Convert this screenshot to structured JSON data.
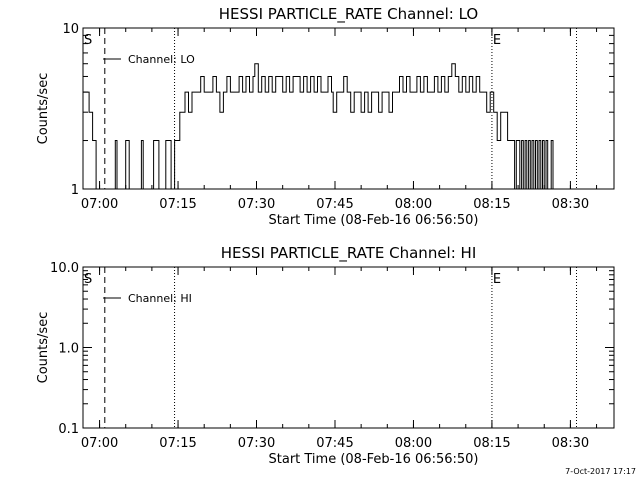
{
  "chart_data": [
    {
      "type": "line",
      "title": "HESSI PARTICLE_RATE Channel: LO",
      "xlabel": "Start Time (08-Feb-16 06:56:50)",
      "ylabel": "Counts/sec",
      "x_ticks": [
        "07:00",
        "07:15",
        "07:30",
        "07:45",
        "08:00",
        "08:15",
        "08:30"
      ],
      "y_ticks": [
        "1",
        "10"
      ],
      "yscale": "log",
      "ylim": [
        1,
        10
      ],
      "xlim": [
        "06:56:50",
        "08:38:20"
      ],
      "legend": {
        "label": "Channel: LO",
        "placement": "top-left"
      },
      "markers": [
        {
          "label": "S",
          "time": "06:56:50"
        },
        {
          "label": "E",
          "time": "08:15:00"
        }
      ],
      "vlines": [
        {
          "time": "07:01:00",
          "style": "dashed"
        },
        {
          "time": "07:14:20",
          "style": "dotted"
        },
        {
          "time": "08:15:00",
          "style": "dotted"
        },
        {
          "time": "08:31:10",
          "style": "dotted"
        }
      ],
      "series": [
        {
          "name": "Channel: LO",
          "points": [
            [
              "06:56:50",
              4
            ],
            [
              "06:57:30",
              4
            ],
            [
              "06:58:00",
              3
            ],
            [
              "06:58:40",
              2
            ],
            [
              "06:59:20",
              1
            ],
            [
              "07:00:40",
              1
            ],
            [
              "07:01:00",
              1
            ],
            [
              "07:02:20",
              1
            ],
            [
              "07:03:00",
              2
            ],
            [
              "07:03:20",
              1
            ],
            [
              "07:04:40",
              1
            ],
            [
              "07:05:00",
              2
            ],
            [
              "07:05:20",
              2
            ],
            [
              "07:05:40",
              1
            ],
            [
              "07:07:40",
              1
            ],
            [
              "07:08:00",
              2
            ],
            [
              "07:08:20",
              1
            ],
            [
              "07:10:00",
              1
            ],
            [
              "07:10:20",
              2
            ],
            [
              "07:11:00",
              2
            ],
            [
              "07:11:20",
              1
            ],
            [
              "07:12:20",
              1
            ],
            [
              "07:12:40",
              2
            ],
            [
              "07:13:20",
              2
            ],
            [
              "07:13:40",
              1
            ],
            [
              "07:14:20",
              2
            ],
            [
              "07:15:20",
              3
            ],
            [
              "07:16:20",
              4
            ],
            [
              "07:17:00",
              3
            ],
            [
              "07:17:40",
              4
            ],
            [
              "07:18:40",
              4
            ],
            [
              "07:19:20",
              5
            ],
            [
              "07:20:00",
              4
            ],
            [
              "07:21:00",
              4
            ],
            [
              "07:21:40",
              5
            ],
            [
              "07:22:20",
              4
            ],
            [
              "07:23:00",
              3
            ],
            [
              "07:23:40",
              4
            ],
            [
              "07:24:20",
              5
            ],
            [
              "07:25:00",
              4
            ],
            [
              "07:26:00",
              4
            ],
            [
              "07:26:40",
              5
            ],
            [
              "07:27:20",
              4
            ],
            [
              "07:28:00",
              5
            ],
            [
              "07:28:40",
              4
            ],
            [
              "07:29:20",
              5
            ],
            [
              "07:29:40",
              6
            ],
            [
              "07:30:20",
              4
            ],
            [
              "07:31:00",
              5
            ],
            [
              "07:31:40",
              4
            ],
            [
              "07:32:20",
              5
            ],
            [
              "07:33:00",
              4
            ],
            [
              "07:33:40",
              5
            ],
            [
              "07:34:20",
              5
            ],
            [
              "07:35:00",
              4
            ],
            [
              "07:35:40",
              5
            ],
            [
              "07:36:20",
              4
            ],
            [
              "07:37:00",
              5
            ],
            [
              "07:37:40",
              5
            ],
            [
              "07:38:20",
              4
            ],
            [
              "07:39:00",
              5
            ],
            [
              "07:39:40",
              4
            ],
            [
              "07:40:20",
              5
            ],
            [
              "07:41:00",
              4
            ],
            [
              "07:41:40",
              5
            ],
            [
              "07:42:20",
              4
            ],
            [
              "07:43:00",
              4
            ],
            [
              "07:43:40",
              5
            ],
            [
              "07:44:20",
              4
            ],
            [
              "07:44:40",
              3
            ],
            [
              "07:45:20",
              4
            ],
            [
              "07:46:00",
              4
            ],
            [
              "07:46:40",
              5
            ],
            [
              "07:47:20",
              4
            ],
            [
              "07:48:00",
              3
            ],
            [
              "07:48:40",
              4
            ],
            [
              "07:49:20",
              4
            ],
            [
              "07:50:00",
              3
            ],
            [
              "07:50:40",
              4
            ],
            [
              "07:51:20",
              3
            ],
            [
              "07:52:00",
              4
            ],
            [
              "07:52:40",
              4
            ],
            [
              "07:53:20",
              3
            ],
            [
              "07:54:00",
              4
            ],
            [
              "07:54:40",
              4
            ],
            [
              "07:55:20",
              3
            ],
            [
              "07:56:00",
              4
            ],
            [
              "07:56:40",
              4
            ],
            [
              "07:57:20",
              5
            ],
            [
              "07:58:00",
              4
            ],
            [
              "07:58:40",
              5
            ],
            [
              "07:59:20",
              4
            ],
            [
              "08:00:00",
              4
            ],
            [
              "08:00:40",
              5
            ],
            [
              "08:01:20",
              4
            ],
            [
              "08:02:00",
              5
            ],
            [
              "08:02:40",
              4
            ],
            [
              "08:03:20",
              4
            ],
            [
              "08:04:00",
              5
            ],
            [
              "08:04:40",
              4
            ],
            [
              "08:05:20",
              5
            ],
            [
              "08:06:00",
              4
            ],
            [
              "08:06:40",
              5
            ],
            [
              "08:07:20",
              6
            ],
            [
              "08:08:00",
              5
            ],
            [
              "08:08:40",
              4
            ],
            [
              "08:09:20",
              5
            ],
            [
              "08:10:00",
              4
            ],
            [
              "08:10:40",
              5
            ],
            [
              "08:11:20",
              4
            ],
            [
              "08:12:00",
              5
            ],
            [
              "08:12:40",
              4
            ],
            [
              "08:13:20",
              4
            ],
            [
              "08:14:00",
              3
            ],
            [
              "08:14:40",
              4
            ],
            [
              "08:15:20",
              3
            ],
            [
              "08:16:00",
              2
            ],
            [
              "08:16:40",
              3
            ],
            [
              "08:17:20",
              3
            ],
            [
              "08:18:00",
              2
            ],
            [
              "08:18:40",
              2
            ],
            [
              "08:19:20",
              1
            ],
            [
              "08:19:40",
              2
            ],
            [
              "08:20:20",
              1
            ],
            [
              "08:20:40",
              2
            ],
            [
              "08:21:00",
              1
            ],
            [
              "08:21:20",
              2
            ],
            [
              "08:21:40",
              1
            ],
            [
              "08:22:00",
              2
            ],
            [
              "08:22:20",
              1
            ],
            [
              "08:22:40",
              2
            ],
            [
              "08:23:00",
              1
            ],
            [
              "08:23:20",
              2
            ],
            [
              "08:23:40",
              1
            ],
            [
              "08:24:00",
              2
            ],
            [
              "08:24:20",
              1
            ],
            [
              "08:24:40",
              2
            ],
            [
              "08:25:00",
              1
            ],
            [
              "08:25:20",
              2
            ],
            [
              "08:25:40",
              1
            ],
            [
              "08:26:20",
              2
            ],
            [
              "08:26:40",
              1
            ]
          ]
        }
      ]
    },
    {
      "type": "line",
      "title": "HESSI PARTICLE_RATE Channel: HI",
      "xlabel": "Start Time (08-Feb-16 06:56:50)",
      "ylabel": "Counts/sec",
      "x_ticks": [
        "07:00",
        "07:15",
        "07:30",
        "07:45",
        "08:00",
        "08:15",
        "08:30"
      ],
      "y_ticks": [
        "0.1",
        "1.0",
        "10.0"
      ],
      "yscale": "log",
      "ylim": [
        0.1,
        10
      ],
      "xlim": [
        "06:56:50",
        "08:38:20"
      ],
      "legend": {
        "label": "Channel: HI",
        "placement": "top-left"
      },
      "markers": [
        {
          "label": "S",
          "time": "06:56:50"
        },
        {
          "label": "E",
          "time": "08:15:00"
        }
      ],
      "vlines": [
        {
          "time": "07:01:00",
          "style": "dashed"
        },
        {
          "time": "07:14:20",
          "style": "dotted"
        },
        {
          "time": "08:15:00",
          "style": "dotted"
        },
        {
          "time": "08:31:10",
          "style": "dotted"
        }
      ],
      "series": [
        {
          "name": "Channel: HI",
          "points": []
        }
      ]
    }
  ],
  "footer": {
    "stamp": "7-Oct-2017 17:17"
  }
}
